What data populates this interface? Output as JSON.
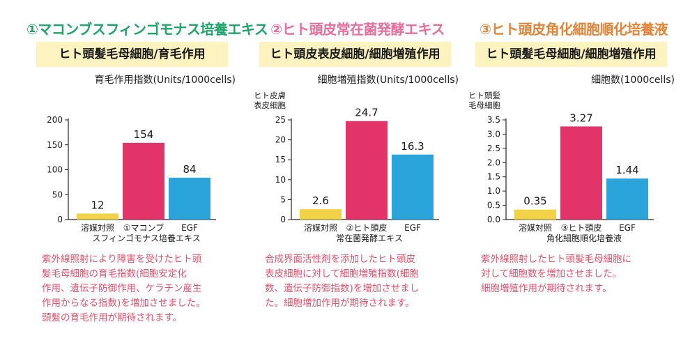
{
  "colors": {
    "bar_yellow": "#f2d347",
    "bar_pink": "#e23469",
    "bar_blue": "#2ba4db",
    "heading_green": "#1fa36a",
    "heading_pink": "#e86e99",
    "heading_orange": "#e0843a",
    "desc_text": "#e4506b",
    "subtitle_bg": "#fdf3c0"
  },
  "panels": [
    {
      "heading": "①マコンブスフィンゴモナス培養エキス",
      "subtitle": "ヒト頭髪毛母細胞/育毛作用",
      "metric": "育毛作用指数(Units/1000cells)",
      "description": "紫外線照射により障害を受けたヒト頭\n髪毛母細胞の育毛指数(細胞安定化\n作用、遺伝子防御作用、ケラチン産生\n作用からなる指数)を増加させました。\n頭髪の育毛作用が期待されます。"
    },
    {
      "heading": "②ヒト頭皮常在菌発酵エキス",
      "subtitle": "ヒト頭皮表皮細胞/細胞増殖作用",
      "metric": "細胞増殖指数(Units/1000cells)",
      "description": "合成界面活性剤を添加したヒト頭皮\n表皮細胞に対して細胞増殖指数(細胞\n数、遺伝子防御指数)を増加させまし\nた。細胞増加作用が期待されます。"
    },
    {
      "heading": "③ヒト頭皮角化細胞順化培養液",
      "subtitle": "ヒト頭髪毛母細胞/細胞増殖作用",
      "metric": "細胞数(1000cells)",
      "description": "紫外線照射したヒト頭髪毛母細胞に\n対して細胞数を増加させました。\n細胞増殖作用が期待されます。"
    }
  ],
  "chart_data": [
    {
      "type": "bar",
      "title": "",
      "ylabel": "",
      "xlabel": "",
      "categories": [
        "溶媒対照",
        "①マコンブ",
        "EGF"
      ],
      "category_caption": "スフィンゴモナス培養エキス",
      "values": [
        12,
        154,
        84
      ],
      "value_labels": [
        "12",
        "154",
        "84"
      ],
      "ylim": [
        0,
        200
      ],
      "yticks": [
        0,
        50,
        100,
        150,
        200
      ],
      "ytick_labels": [
        "0",
        "50",
        "100",
        "150",
        "200"
      ],
      "grid": false
    },
    {
      "type": "bar",
      "title": "",
      "ylabel": "ヒト皮膚\n表皮細胞",
      "xlabel": "",
      "categories": [
        "溶媒対照",
        "②ヒト頭皮",
        "EGF"
      ],
      "category_caption": "常在菌発酵エキス",
      "values": [
        2.6,
        24.7,
        16.3
      ],
      "value_labels": [
        "2.6",
        "24.7",
        "16.3"
      ],
      "ylim": [
        0,
        25
      ],
      "yticks": [
        0,
        5,
        10,
        15,
        20,
        25
      ],
      "ytick_labels": [
        "0",
        "5",
        "10",
        "15",
        "20",
        "25"
      ],
      "grid": false
    },
    {
      "type": "bar",
      "title": "",
      "ylabel": "ヒト頭髪\n毛母細胞",
      "xlabel": "",
      "categories": [
        "溶媒対照",
        "③ヒト頭皮",
        "EGF"
      ],
      "category_caption": "角化細胞順化培養液",
      "values": [
        0.35,
        3.27,
        1.44
      ],
      "value_labels": [
        "0.35",
        "3.27",
        "1.44"
      ],
      "ylim": [
        0,
        3.5
      ],
      "yticks": [
        0,
        0.5,
        1,
        1.5,
        2,
        2.5,
        3,
        3.5
      ],
      "ytick_labels": [
        "0.0",
        "0.5",
        "1.0",
        "1.5",
        "2.0",
        "2.5",
        "3.0",
        "3.5"
      ],
      "grid": false
    }
  ]
}
